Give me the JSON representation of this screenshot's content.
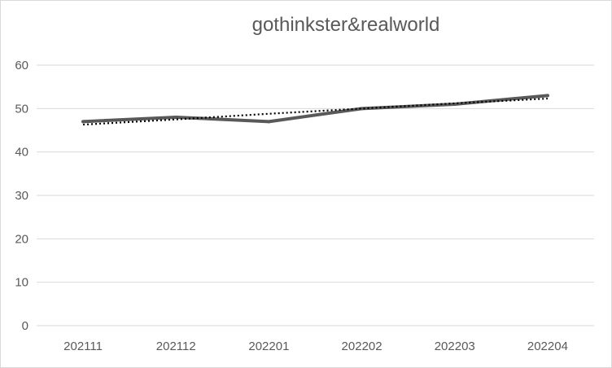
{
  "chart_data": {
    "type": "line",
    "title": "gothinkster&realworld",
    "xlabel": "",
    "ylabel": "",
    "categories": [
      "202111",
      "202112",
      "202201",
      "202202",
      "202203",
      "202204"
    ],
    "series": [
      {
        "values": [
          47,
          48,
          47,
          50,
          51,
          53
        ],
        "color": "#595959",
        "style": "solid"
      }
    ],
    "trendline": {
      "values": [
        46.3,
        47.5,
        48.8,
        50.0,
        51.2,
        52.3
      ],
      "color": "#000000",
      "style": "dotted"
    },
    "ylim": [
      0,
      60
    ],
    "yticks": [
      0,
      10,
      20,
      30,
      40,
      50,
      60
    ],
    "grid": true,
    "legend": "none"
  }
}
